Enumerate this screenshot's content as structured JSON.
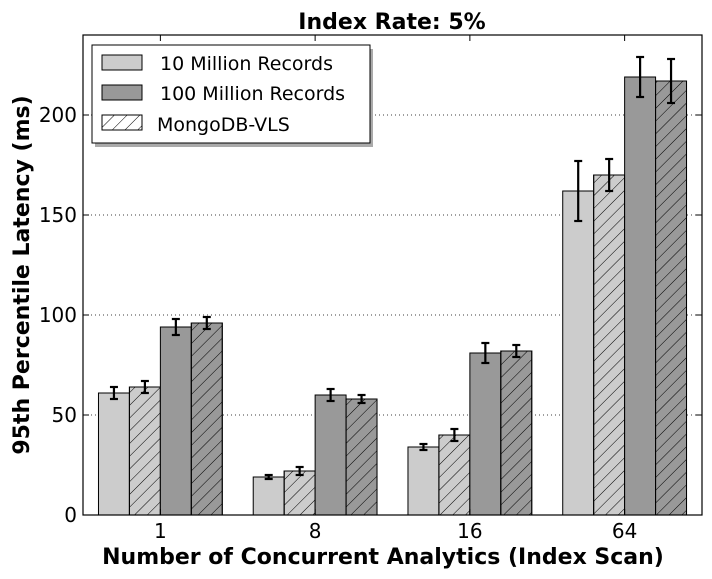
{
  "chart_data": {
    "type": "bar",
    "title": "Index Rate: 5%",
    "xlabel": "Number of Concurrent Analytics (Index Scan)",
    "ylabel": "95th Percentile Latency (ms)",
    "categories": [
      "1",
      "8",
      "16",
      "64"
    ],
    "ylim": [
      0,
      240
    ],
    "yticks": [
      0,
      50,
      100,
      150,
      200
    ],
    "grid": "horizontal-dotted",
    "legend_position": "top-left",
    "legend": [
      "10 Million Records",
      "100 Million Records",
      "MongoDB-VLS"
    ],
    "series": [
      {
        "values": [
          61,
          19,
          34,
          162
        ],
        "errors": [
          3,
          1,
          1.5,
          15
        ],
        "fill": "#cccccc",
        "hatched": false
      },
      {
        "values": [
          64,
          22,
          40,
          170
        ],
        "errors": [
          3,
          2,
          3,
          8
        ],
        "fill": "#cccccc",
        "hatched": true
      },
      {
        "values": [
          94,
          60,
          81,
          219
        ],
        "errors": [
          4,
          3,
          5,
          10
        ],
        "fill": "#999999",
        "hatched": false
      },
      {
        "values": [
          96,
          58,
          82,
          217
        ],
        "errors": [
          3,
          2,
          3,
          11
        ],
        "fill": "#999999",
        "hatched": true
      }
    ]
  }
}
